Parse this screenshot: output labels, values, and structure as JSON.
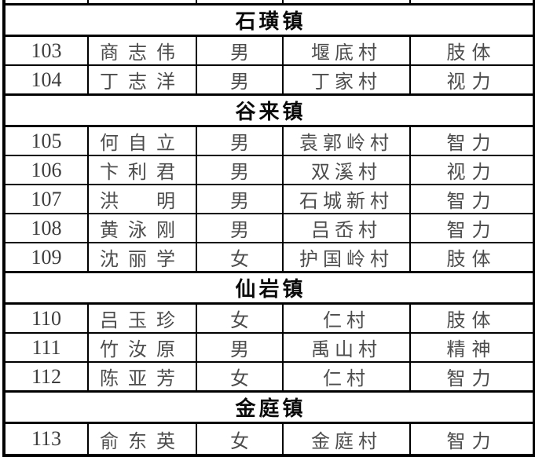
{
  "page": {
    "background_color": "#ffffff",
    "border_color": "#000000",
    "data_text_color": "#4d4d4d",
    "header_text_color": "#0a0a0a"
  },
  "table": {
    "sections": [
      {
        "town": "石璜镇",
        "rows": [
          {
            "no": "103",
            "name": "商志伟",
            "gender": "男",
            "village": "堰底村",
            "type": "肢体"
          },
          {
            "no": "104",
            "name": "丁志洋",
            "gender": "男",
            "village": "丁家村",
            "type": "视力"
          }
        ]
      },
      {
        "town": "谷来镇",
        "rows": [
          {
            "no": "105",
            "name": "何自立",
            "gender": "男",
            "village": "袁郭岭村",
            "type": "智力"
          },
          {
            "no": "106",
            "name": "卞利君",
            "gender": "男",
            "village": "双溪村",
            "type": "视力"
          },
          {
            "no": "107",
            "name": "洪　明",
            "gender": "男",
            "village": "石城新村",
            "type": "智力"
          },
          {
            "no": "108",
            "name": "黄泳刚",
            "gender": "男",
            "village": "吕岙村",
            "type": "智力"
          },
          {
            "no": "109",
            "name": "沈丽学",
            "gender": "女",
            "village": "护国岭村",
            "type": "肢体"
          }
        ]
      },
      {
        "town": "仙岩镇",
        "rows": [
          {
            "no": "110",
            "name": "吕玉珍",
            "gender": "女",
            "village": "仁村",
            "type": "肢体"
          },
          {
            "no": "111",
            "name": "竹汝原",
            "gender": "男",
            "village": "禹山村",
            "type": "精神"
          },
          {
            "no": "112",
            "name": "陈亚芳",
            "gender": "女",
            "village": "仁村",
            "type": "智力"
          }
        ]
      },
      {
        "town": "金庭镇",
        "rows": [
          {
            "no": "113",
            "name": "俞东英",
            "gender": "女",
            "village": "金庭村",
            "type": "智力"
          }
        ]
      }
    ]
  }
}
